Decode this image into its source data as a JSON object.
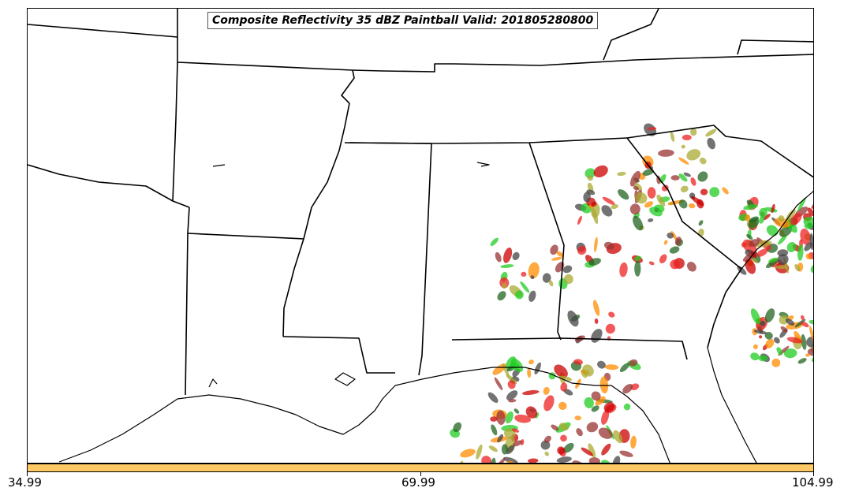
{
  "title": "Composite Reflectivity 35 dBZ Paintball Valid: 201805280800",
  "colorbar": {
    "color": "#ffc966",
    "tick_labels": [
      "34.99",
      "69.99",
      "104.99"
    ]
  },
  "colors": {
    "ensemble_members": [
      "#ee2222",
      "#22cc22",
      "#ff8c00",
      "#993333",
      "#aaaa33",
      "#226622",
      "#cc0000",
      "#444444"
    ]
  },
  "basemap": {
    "features": [
      "state-borders",
      "coastline",
      "gulf-of-mexico"
    ]
  }
}
